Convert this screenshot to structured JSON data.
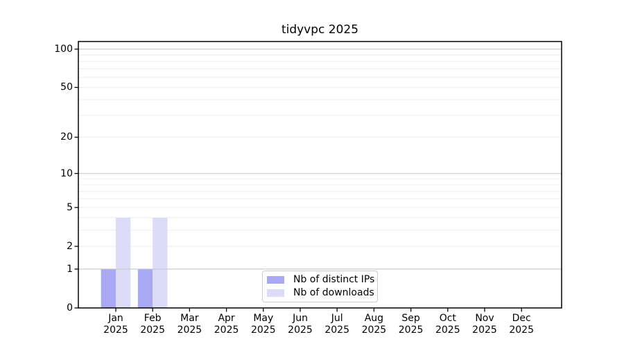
{
  "chart_data": {
    "type": "bar",
    "title": "tidyvpc 2025",
    "categories": [
      "Jan",
      "Feb",
      "Mar",
      "Apr",
      "May",
      "Jun",
      "Jul",
      "Aug",
      "Sep",
      "Oct",
      "Nov",
      "Dec"
    ],
    "category_year": "2025",
    "series": [
      {
        "name": "Nb of distinct IPs",
        "color": "#a8a8f4",
        "values": [
          1,
          1,
          0,
          0,
          0,
          0,
          0,
          0,
          0,
          0,
          0,
          0
        ]
      },
      {
        "name": "Nb of downloads",
        "color": "#dcdcf8",
        "values": [
          4,
          4,
          0,
          0,
          0,
          0,
          0,
          0,
          0,
          0,
          0,
          0
        ]
      }
    ],
    "y_scale": "log1p",
    "y_ticks": [
      0,
      1,
      2,
      5,
      10,
      20,
      50,
      100
    ],
    "y_max": 100,
    "major_gridlines": [
      1,
      10,
      100
    ],
    "minor_gridlines": [
      2,
      3,
      4,
      5,
      6,
      7,
      8,
      9,
      20,
      30,
      40,
      50,
      60,
      70,
      80,
      90
    ],
    "grid": true,
    "legend_position": "lower center",
    "colors": {
      "major_grid": "#c9c9c9",
      "minor_grid": "#ededed",
      "axis": "#000000",
      "text": "#000000",
      "legend_border": "#cccccc",
      "background": "#ffffff"
    }
  }
}
